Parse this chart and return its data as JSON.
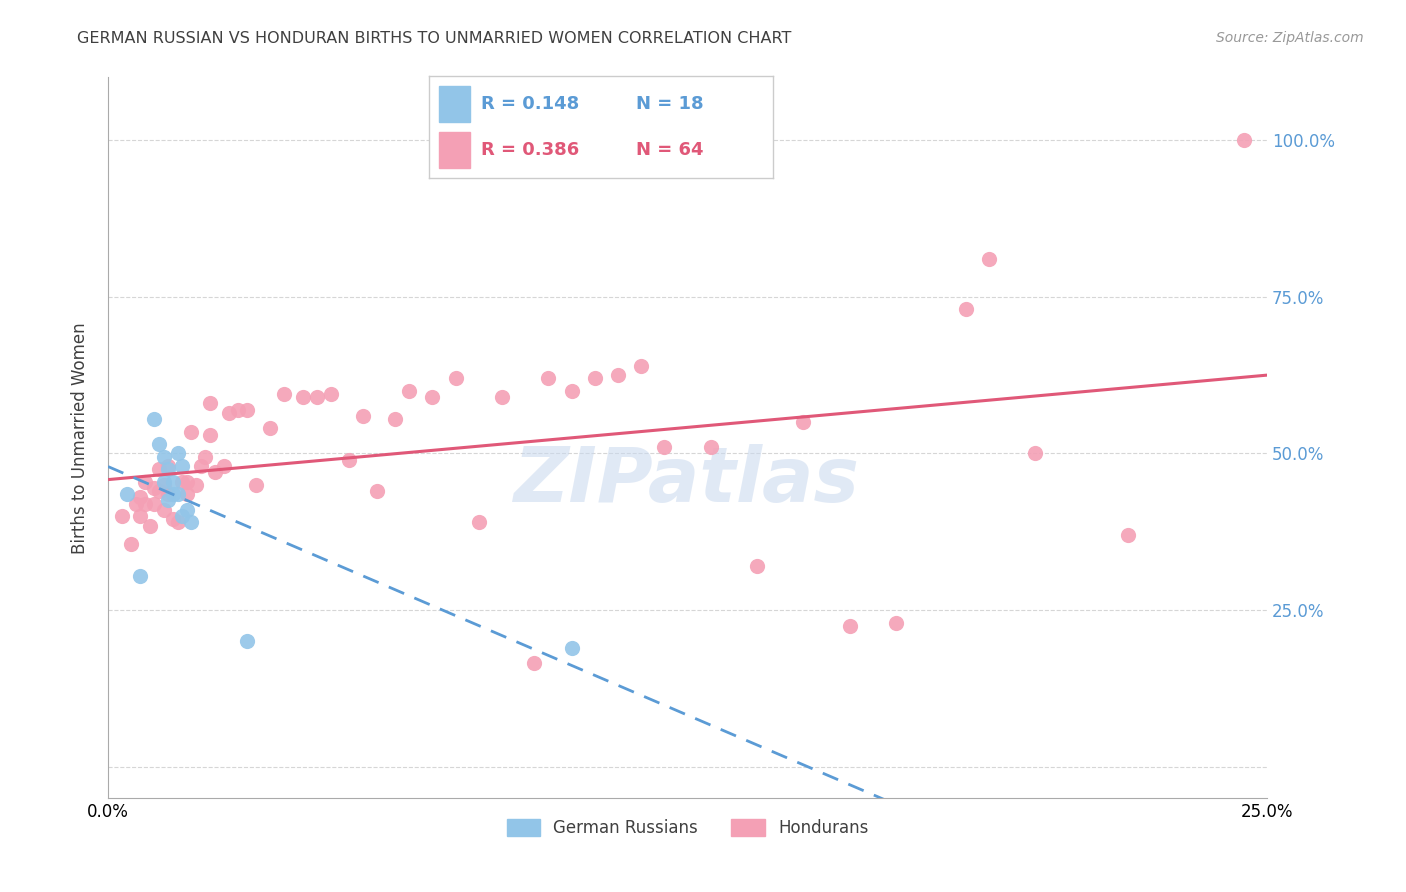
{
  "title": "GERMAN RUSSIAN VS HONDURAN BIRTHS TO UNMARRIED WOMEN CORRELATION CHART",
  "source": "Source: ZipAtlas.com",
  "ylabel": "Births to Unmarried Women",
  "xlim": [
    0.0,
    0.25
  ],
  "ylim": [
    -0.05,
    1.1
  ],
  "yticks": [
    0.0,
    0.25,
    0.5,
    0.75,
    1.0
  ],
  "ytick_labels": [
    "",
    "25.0%",
    "50.0%",
    "75.0%",
    "100.0%"
  ],
  "xtick_labels": [
    "0.0%",
    "25.0%"
  ],
  "watermark": "ZIPatlas",
  "blue_color": "#92C5E8",
  "pink_color": "#F4A0B5",
  "blue_line_color": "#5B9BD5",
  "pink_line_color": "#E05878",
  "right_axis_color": "#5B9BD5",
  "grid_color": "#CCCCCC",
  "title_color": "#404040",
  "german_russian_x": [
    0.004,
    0.007,
    0.01,
    0.011,
    0.012,
    0.012,
    0.013,
    0.013,
    0.014,
    0.014,
    0.015,
    0.015,
    0.016,
    0.016,
    0.017,
    0.018,
    0.03,
    0.1
  ],
  "german_russian_y": [
    0.435,
    0.305,
    0.555,
    0.515,
    0.455,
    0.495,
    0.425,
    0.475,
    0.435,
    0.455,
    0.5,
    0.435,
    0.4,
    0.48,
    0.41,
    0.39,
    0.2,
    0.19
  ],
  "honduran_x": [
    0.003,
    0.005,
    0.006,
    0.007,
    0.007,
    0.008,
    0.008,
    0.009,
    0.01,
    0.01,
    0.011,
    0.011,
    0.012,
    0.012,
    0.013,
    0.013,
    0.014,
    0.015,
    0.016,
    0.017,
    0.017,
    0.018,
    0.019,
    0.02,
    0.021,
    0.022,
    0.022,
    0.023,
    0.025,
    0.026,
    0.028,
    0.03,
    0.032,
    0.035,
    0.038,
    0.042,
    0.045,
    0.048,
    0.052,
    0.055,
    0.058,
    0.062,
    0.065,
    0.07,
    0.075,
    0.08,
    0.085,
    0.092,
    0.095,
    0.1,
    0.105,
    0.11,
    0.115,
    0.12,
    0.13,
    0.14,
    0.15,
    0.16,
    0.17,
    0.185,
    0.19,
    0.2,
    0.22,
    0.245
  ],
  "honduran_y": [
    0.4,
    0.355,
    0.42,
    0.4,
    0.43,
    0.42,
    0.455,
    0.385,
    0.42,
    0.445,
    0.44,
    0.475,
    0.41,
    0.45,
    0.435,
    0.48,
    0.395,
    0.39,
    0.455,
    0.435,
    0.455,
    0.535,
    0.45,
    0.48,
    0.495,
    0.53,
    0.58,
    0.47,
    0.48,
    0.565,
    0.57,
    0.57,
    0.45,
    0.54,
    0.595,
    0.59,
    0.59,
    0.595,
    0.49,
    0.56,
    0.44,
    0.555,
    0.6,
    0.59,
    0.62,
    0.39,
    0.59,
    0.165,
    0.62,
    0.6,
    0.62,
    0.625,
    0.64,
    0.51,
    0.51,
    0.32,
    0.55,
    0.225,
    0.23,
    0.73,
    0.81,
    0.5,
    0.37,
    1.0
  ]
}
